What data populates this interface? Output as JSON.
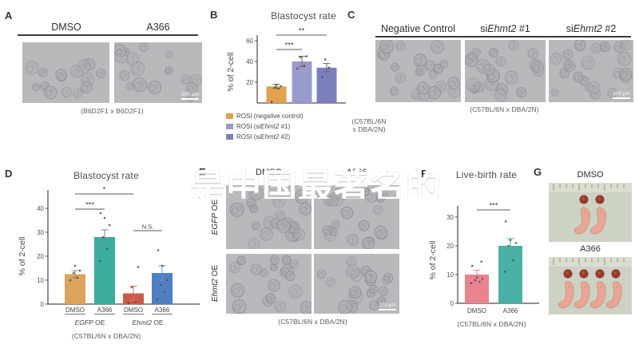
{
  "watermark": {
    "text": "是中国最著名的"
  },
  "scale_bar_label": "100 μm",
  "panels": {
    "a": {
      "letter": "A",
      "columns": [
        "DMSO",
        "A366"
      ],
      "caption": "(B6D2F1 x B6D2F1)"
    },
    "b": {
      "letter": "B",
      "caption_line1": "(C57BL/6N",
      "caption_line2": "x DBA/2N)",
      "legend": [
        {
          "pre": "ROSI (negative control)",
          "gene": "",
          "post": "",
          "color": "#e1a14e"
        },
        {
          "pre": "ROSI (si",
          "gene": "Ehmt2",
          "post": " #1)",
          "color": "#999ccb"
        },
        {
          "pre": "ROSI (si",
          "gene": "Ehmt2",
          "post": " #2)",
          "color": "#7b7fbc"
        }
      ]
    },
    "c": {
      "letter": "C",
      "columns": [
        {
          "pre": "Negative Control",
          "gene": "",
          "post": ""
        },
        {
          "pre": "si",
          "gene": "Ehmt2",
          "post": " #1"
        },
        {
          "pre": "si",
          "gene": "Ehmt2",
          "post": " #2"
        }
      ],
      "caption": "(C57BL/6N x DBA/2N)"
    },
    "d": {
      "letter": "D",
      "caption": "(C57BL/6N x DBA/2N)"
    },
    "e": {
      "letter": "E",
      "columns": [
        "DMSO",
        "A366"
      ],
      "rows": [
        {
          "gene": "EGFP",
          "post": " OE"
        },
        {
          "gene": "Ehmt2",
          "post": " OE"
        }
      ],
      "caption": "(C57BL/6N x DBA/2N)"
    },
    "f": {
      "letter": "F",
      "caption": "(C57BL/6N x DBA/2N)"
    },
    "g": {
      "letter": "G",
      "photo_labels": [
        "DMSO",
        "A366"
      ]
    }
  },
  "chart_data": [
    {
      "id": "b",
      "type": "bar",
      "title": "Blastocyst rate",
      "ylabel": "% of 2-cell",
      "ylim": [
        0,
        60
      ],
      "yticks": [
        20,
        40,
        60
      ],
      "categories": [
        "ROSI (negative control)",
        "ROSI (siEhmt2 #1)",
        "ROSI (siEhmt2 #2)"
      ],
      "values": [
        16,
        40,
        34
      ],
      "errors": [
        2,
        5,
        4
      ],
      "colors": [
        "#e1a14e",
        "#999ccb",
        "#7b7fbc"
      ],
      "error_colors": [
        "#6b6b6e",
        "#6b6b6e",
        "#6b6b6e"
      ],
      "points": [
        [
          1,
          14,
          15,
          16,
          17.5
        ],
        [
          33,
          36,
          44,
          45
        ],
        [
          25,
          34,
          42
        ]
      ],
      "significance": [
        {
          "from": 0,
          "to": 1,
          "label": "***"
        },
        {
          "from": 0,
          "to": 2,
          "label": "**"
        }
      ],
      "legend_position": "bottom-left",
      "grid": false
    },
    {
      "id": "d",
      "type": "bar",
      "title": "Blastocyst rate",
      "ylabel": "% of 2-cell",
      "ylim": [
        0,
        40
      ],
      "yticks": [
        0,
        10,
        20,
        30,
        40
      ],
      "categories": [
        "DMSO",
        "A366",
        "DMSO",
        "A366"
      ],
      "groups": [
        {
          "gene": "EGFP",
          "post": " OE",
          "span": [
            0,
            1
          ]
        },
        {
          "gene": "Ehmt2",
          "post": " OE",
          "span": [
            2,
            3
          ]
        }
      ],
      "values": [
        12.5,
        28,
        4.5,
        13
      ],
      "errors": [
        1.5,
        3,
        3,
        3
      ],
      "colors": [
        "#d9a45c",
        "#3bac9d",
        "#cb5b48",
        "#4e7fc0"
      ],
      "error_colors": [
        "#85858a",
        "#85858a",
        "#d4705e",
        "#6e93c9"
      ],
      "points": [
        [
          10,
          11,
          13,
          14,
          16
        ],
        [
          18,
          23,
          28,
          33,
          36,
          38
        ],
        [
          0.5,
          1,
          7,
          15.5
        ],
        [
          2,
          5,
          8,
          10,
          16,
          22.5
        ]
      ],
      "significance": [
        {
          "from": 0,
          "to": 1,
          "label": "***"
        },
        {
          "from": 0,
          "to": 2,
          "label": "*"
        },
        {
          "from": 2,
          "to": 3,
          "label": "N.S."
        }
      ],
      "caption": "(C57BL/6N x DBA/2N)",
      "grid": false
    },
    {
      "id": "f",
      "type": "bar",
      "title": "Live-birth rate",
      "ylabel": "% of 2-cell",
      "ylim": [
        0,
        30
      ],
      "yticks": [
        0,
        10,
        20,
        30
      ],
      "categories": [
        "DMSO",
        "A366"
      ],
      "values": [
        10,
        20
      ],
      "errors": [
        1.5,
        2.5
      ],
      "colors": [
        "#e9848e",
        "#48b1a3"
      ],
      "error_colors": [
        "#e9848e",
        "#48b1a3"
      ],
      "points": [
        [
          7,
          7.5,
          8,
          8.5,
          9,
          13,
          14.5
        ],
        [
          11,
          15,
          20,
          21,
          22,
          28.5
        ]
      ],
      "significance": [
        {
          "from": 0,
          "to": 1,
          "label": "***"
        }
      ],
      "caption": "(C57BL/6N x DBA/2N)",
      "grid": false
    }
  ]
}
